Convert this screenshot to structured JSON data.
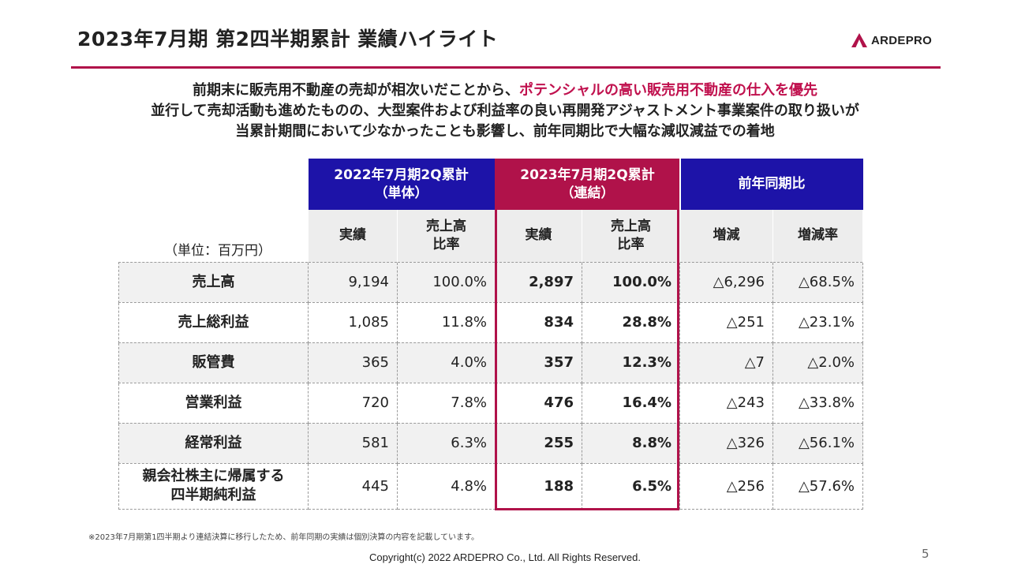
{
  "header": {
    "title": "2023年7月期  第2四半期累計 業績ハイライト",
    "logo_text": "ARDEPRO",
    "accent_color": "#b0124a"
  },
  "summary": {
    "line1_prefix": "前期末に販売用不動産の売却が相次いだことから、",
    "line1_highlight": "ポテンシャルの高い販売用不動産の仕入を優先",
    "line2": "並行して売却活動も進めたものの、大型案件および利益率の良い再開発アジャストメント事業案件の取り扱いが",
    "line3": "当累計期間において少なかったことも影響し、前年同期比で大幅な減収減益での着地"
  },
  "table": {
    "unit_label": "（単位：百万円）",
    "groups": [
      {
        "line1": "2022年7月期2Q累計",
        "line2": "（単体）",
        "color": "#1d13a8"
      },
      {
        "line1": "2023年7月期2Q累計",
        "line2": "（連結）",
        "color": "#b0124a"
      },
      {
        "line1": "前年同期比",
        "color": "#1d13a8"
      }
    ],
    "subheaders": [
      {
        "line1": "実績"
      },
      {
        "line1": "売上高",
        "line2": "比率"
      },
      {
        "line1": "実績"
      },
      {
        "line1": "売上高",
        "line2": "比率"
      },
      {
        "line1": "増減"
      },
      {
        "line1": "増減率"
      }
    ],
    "rows": [
      {
        "label1": "売上高",
        "v2022": "9,194",
        "r2022": "100.0%",
        "v2023": "2,897",
        "r2023": "100.0%",
        "diff": "△6,296",
        "rate": "△68.5%"
      },
      {
        "label1": "売上総利益",
        "v2022": "1,085",
        "r2022": "11.8%",
        "v2023": "834",
        "r2023": "28.8%",
        "diff": "△251",
        "rate": "△23.1%"
      },
      {
        "label1": "販管費",
        "v2022": "365",
        "r2022": "4.0%",
        "v2023": "357",
        "r2023": "12.3%",
        "diff": "△7",
        "rate": "△2.0%"
      },
      {
        "label1": "営業利益",
        "v2022": "720",
        "r2022": "7.8%",
        "v2023": "476",
        "r2023": "16.4%",
        "diff": "△243",
        "rate": "△33.8%"
      },
      {
        "label1": "経常利益",
        "v2022": "581",
        "r2022": "6.3%",
        "v2023": "255",
        "r2023": "8.8%",
        "diff": "△326",
        "rate": "△56.1%"
      },
      {
        "label1": "親会社株主に帰属する",
        "label2": "四半期純利益",
        "v2022": "445",
        "r2022": "4.8%",
        "v2023": "188",
        "r2023": "6.5%",
        "diff": "△256",
        "rate": "△57.6%"
      }
    ]
  },
  "footer": {
    "note": "※2023年7月期第1四半期より連結決算に移行したため、前年同期の実績は個別決算の内容を記載しています。",
    "copyright": "Copyright(c)  2022 ARDEPRO Co., Ltd. All Rights Reserved.",
    "page_number": "5"
  }
}
